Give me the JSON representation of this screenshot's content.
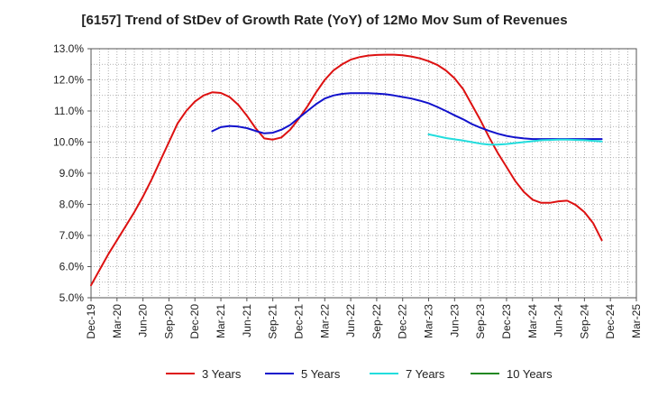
{
  "chart_data": {
    "type": "line",
    "title": "[6157]  Trend of StDev of Growth Rate (YoY) of 12Mo Mov Sum of Revenues",
    "xlabel": "",
    "ylabel": "",
    "ylim": [
      5.0,
      13.0
    ],
    "yticks": [
      5.0,
      6.0,
      7.0,
      8.0,
      9.0,
      10.0,
      11.0,
      12.0,
      13.0
    ],
    "ytick_labels": [
      "5.0%",
      "6.0%",
      "7.0%",
      "8.0%",
      "9.0%",
      "10.0%",
      "11.0%",
      "12.0%",
      "13.0%"
    ],
    "x_start": "Dec-19",
    "x_months": 63,
    "xtick_labels": [
      "Dec-19",
      "Mar-20",
      "Jun-20",
      "Sep-20",
      "Dec-20",
      "Mar-21",
      "Jun-21",
      "Sep-21",
      "Dec-21",
      "Mar-22",
      "Jun-22",
      "Sep-22",
      "Dec-22",
      "Mar-23",
      "Jun-23",
      "Sep-23",
      "Dec-23",
      "Mar-24",
      "Jun-24",
      "Sep-24",
      "Dec-24",
      "Mar-25"
    ],
    "grid": true,
    "legend_position": "bottom",
    "series": [
      {
        "name": "3 Years",
        "color": "#dd1111",
        "start_index": 0,
        "values": [
          5.4,
          5.9,
          6.4,
          6.85,
          7.3,
          7.75,
          8.25,
          8.8,
          9.4,
          10.0,
          10.6,
          11.0,
          11.3,
          11.5,
          11.6,
          11.58,
          11.45,
          11.2,
          10.85,
          10.45,
          10.12,
          10.08,
          10.15,
          10.4,
          10.75,
          11.15,
          11.6,
          12.0,
          12.3,
          12.5,
          12.65,
          12.73,
          12.78,
          12.8,
          12.81,
          12.81,
          12.79,
          12.75,
          12.69,
          12.6,
          12.48,
          12.3,
          12.05,
          11.7,
          11.2,
          10.7,
          10.15,
          9.65,
          9.2,
          8.75,
          8.4,
          8.15,
          8.05,
          8.05,
          8.1,
          8.12,
          7.98,
          7.75,
          7.4,
          6.85
        ]
      },
      {
        "name": "5 Years",
        "color": "#1111cc",
        "start_index": 14,
        "values": [
          10.35,
          10.48,
          10.52,
          10.5,
          10.45,
          10.36,
          10.28,
          10.3,
          10.4,
          10.55,
          10.78,
          11.0,
          11.22,
          11.4,
          11.5,
          11.55,
          11.57,
          11.57,
          11.57,
          11.56,
          11.54,
          11.5,
          11.45,
          11.4,
          11.33,
          11.25,
          11.13,
          11.0,
          10.86,
          10.73,
          10.58,
          10.46,
          10.36,
          10.27,
          10.2,
          10.15,
          10.12,
          10.1,
          10.1,
          10.1,
          10.1,
          10.1,
          10.1,
          10.1,
          10.1,
          10.1
        ]
      },
      {
        "name": "7 Years",
        "color": "#22dddd",
        "start_index": 39,
        "values": [
          10.25,
          10.19,
          10.13,
          10.09,
          10.05,
          10.0,
          9.95,
          9.92,
          9.92,
          9.94,
          9.97,
          10.0,
          10.03,
          10.06,
          10.07,
          10.08,
          10.08,
          10.07,
          10.06,
          10.04,
          10.02
        ]
      },
      {
        "name": "10 Years",
        "color": "#228822",
        "start_index": 0,
        "values": []
      }
    ]
  }
}
